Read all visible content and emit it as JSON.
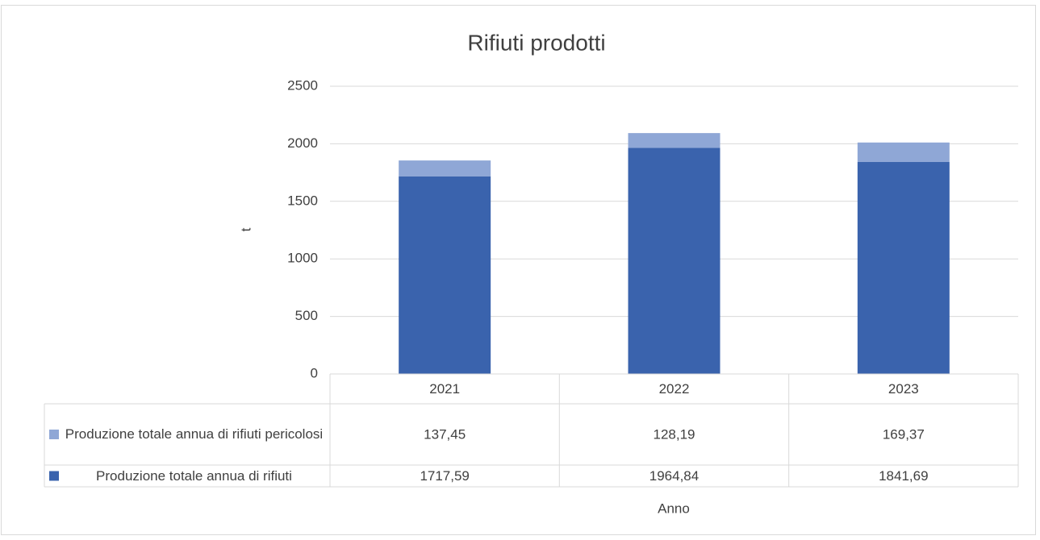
{
  "chart_data": {
    "type": "bar",
    "stacked": true,
    "title": "Rifiuti prodotti",
    "categories": [
      "2021",
      "2022",
      "2023"
    ],
    "series": [
      {
        "name": "Produzione totale annua di rifiuti",
        "color": "#3a63ad",
        "values": [
          1717.59,
          1964.84,
          1841.69
        ],
        "value_labels": [
          "1717,59",
          "1964,84",
          "1841,69"
        ]
      },
      {
        "name": "Produzione totale annua di rifiuti pericolosi",
        "color": "#8fa7d6",
        "values": [
          137.45,
          128.19,
          169.37
        ],
        "value_labels": [
          "137,45",
          "128,19",
          "169,37"
        ]
      }
    ],
    "ylim": [
      0,
      2500
    ],
    "yticks": [
      0,
      500,
      1000,
      1500,
      2000,
      2500
    ],
    "grid": true,
    "y_label": "t",
    "x_label": "Anno"
  }
}
